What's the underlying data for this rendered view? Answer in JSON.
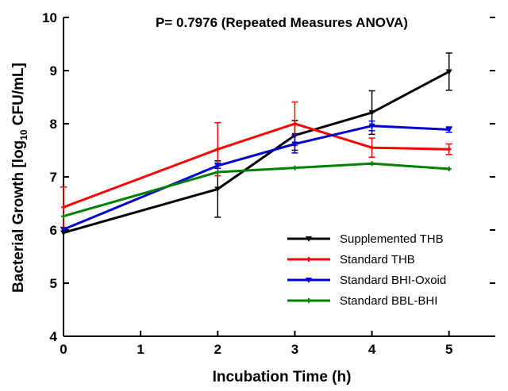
{
  "chart_data": {
    "type": "line",
    "title": "P= 0.7976 (Repeated Measures ANOVA)",
    "xlabel": "Incubation Time (h)",
    "ylabel_prefix": "Bacterial Growth [log",
    "ylabel_sub": "10",
    "ylabel_suffix": " CFU/mL]",
    "xlim": [
      0,
      5.6
    ],
    "ylim": [
      4,
      10
    ],
    "xticks": [
      0,
      1,
      2,
      3,
      4,
      5
    ],
    "yticks": [
      4,
      5,
      6,
      7,
      8,
      9,
      10
    ],
    "legend_position": "bottom-right",
    "series": [
      {
        "name": "Supplemented THB",
        "color": "#000000",
        "x": [
          0,
          2,
          3,
          4,
          5
        ],
        "y": [
          5.95,
          6.77,
          7.78,
          8.21,
          8.98
        ],
        "err": [
          0,
          0.53,
          0.28,
          0.41,
          0.35
        ]
      },
      {
        "name": "Standard THB",
        "color": "#ff0000",
        "x": [
          0,
          2,
          3,
          4,
          5
        ],
        "y": [
          6.43,
          7.52,
          8.0,
          7.55,
          7.52
        ],
        "err": [
          0.38,
          0.5,
          0.41,
          0.18,
          0.1
        ]
      },
      {
        "name": "Standard BHI-Oxoid",
        "color": "#0000cc",
        "x": [
          0,
          2,
          3,
          4,
          5
        ],
        "y": [
          6.01,
          7.21,
          7.62,
          7.96,
          7.89
        ],
        "err": [
          0,
          0.05,
          0.17,
          0.09,
          0.05
        ]
      },
      {
        "name": "Standard BBL-BHI",
        "color": "#008000",
        "x": [
          0,
          2,
          3,
          4,
          5
        ],
        "y": [
          6.26,
          7.09,
          7.17,
          7.25,
          7.15
        ],
        "err": [
          0,
          0,
          0,
          0,
          0
        ]
      }
    ]
  }
}
